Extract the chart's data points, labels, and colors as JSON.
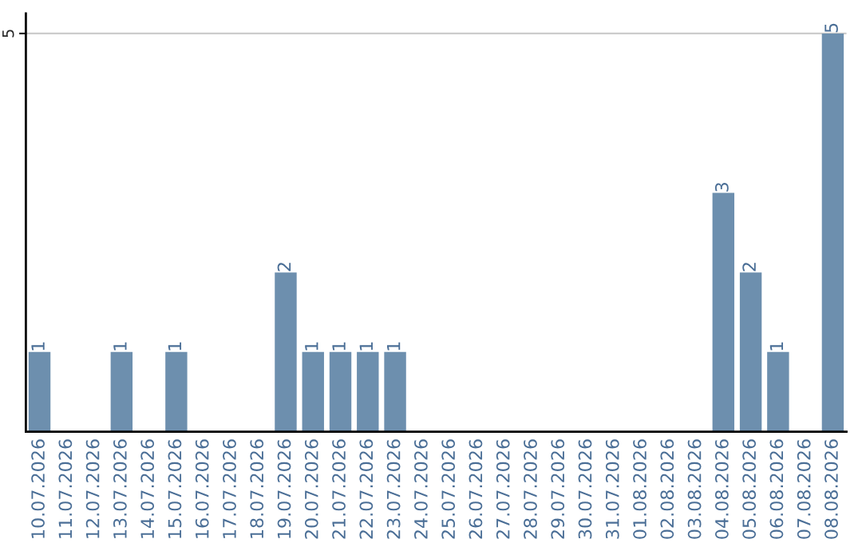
{
  "chart_data": {
    "type": "bar",
    "categories": [
      "10.07.2026",
      "11.07.2026",
      "12.07.2026",
      "13.07.2026",
      "14.07.2026",
      "15.07.2026",
      "16.07.2026",
      "17.07.2026",
      "18.07.2026",
      "19.07.2026",
      "20.07.2026",
      "21.07.2026",
      "22.07.2026",
      "23.07.2026",
      "24.07.2026",
      "25.07.2026",
      "26.07.2026",
      "27.07.2026",
      "28.07.2026",
      "29.07.2026",
      "30.07.2026",
      "31.07.2026",
      "01.08.2026",
      "02.08.2026",
      "03.08.2026",
      "04.08.2026",
      "05.08.2026",
      "06.08.2026",
      "07.08.2026",
      "08.08.2026"
    ],
    "values": [
      1,
      0,
      0,
      1,
      0,
      1,
      0,
      0,
      0,
      2,
      1,
      1,
      1,
      1,
      0,
      0,
      0,
      0,
      0,
      0,
      0,
      0,
      0,
      0,
      0,
      3,
      2,
      1,
      0,
      5
    ],
    "value_labels": [
      "1",
      null,
      null,
      "1",
      null,
      "1",
      null,
      null,
      null,
      "2",
      "1",
      "1",
      "1",
      "1",
      null,
      null,
      null,
      null,
      null,
      null,
      null,
      null,
      null,
      null,
      null,
      "3",
      "2",
      "1",
      null,
      "5"
    ],
    "color": "#6d8fae",
    "ylim": [
      0,
      5.25
    ],
    "yticks": [
      5
    ],
    "grid": "y"
  }
}
